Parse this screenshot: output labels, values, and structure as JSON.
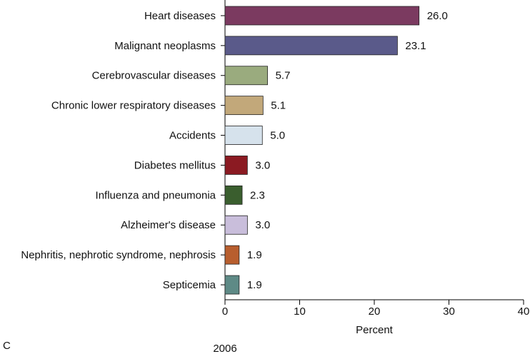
{
  "chart_data": {
    "type": "barh",
    "categories": [
      "Heart diseases",
      "Malignant neoplasms",
      "Cerebrovascular diseases",
      "Chronic lower respiratory diseases",
      "Accidents",
      "Diabetes mellitus",
      "Influenza and pneumonia",
      "Alzheimer's disease",
      "Nephritis, nephrotic syndrome, nephrosis",
      "Septicemia"
    ],
    "values": [
      26.0,
      23.1,
      5.7,
      5.1,
      5.0,
      3.0,
      2.3,
      3.0,
      1.9,
      1.9
    ],
    "value_labels": [
      "26.0",
      "23.1",
      "5.7",
      "5.1",
      "5.0",
      "3.0",
      "2.3",
      "3.0",
      "1.9",
      "1.9"
    ],
    "colors": [
      "#7b3a60",
      "#5a5a8a",
      "#9aab7e",
      "#c2a87a",
      "#d6e2ec",
      "#8b1a22",
      "#3a5e2e",
      "#c9bedb",
      "#b85e2e",
      "#5e8a86"
    ],
    "xlabel": "Percent",
    "xlim": [
      0,
      40
    ],
    "xticks": [
      0,
      10,
      20,
      30,
      40
    ],
    "panel_label": "C",
    "year": "2006"
  }
}
